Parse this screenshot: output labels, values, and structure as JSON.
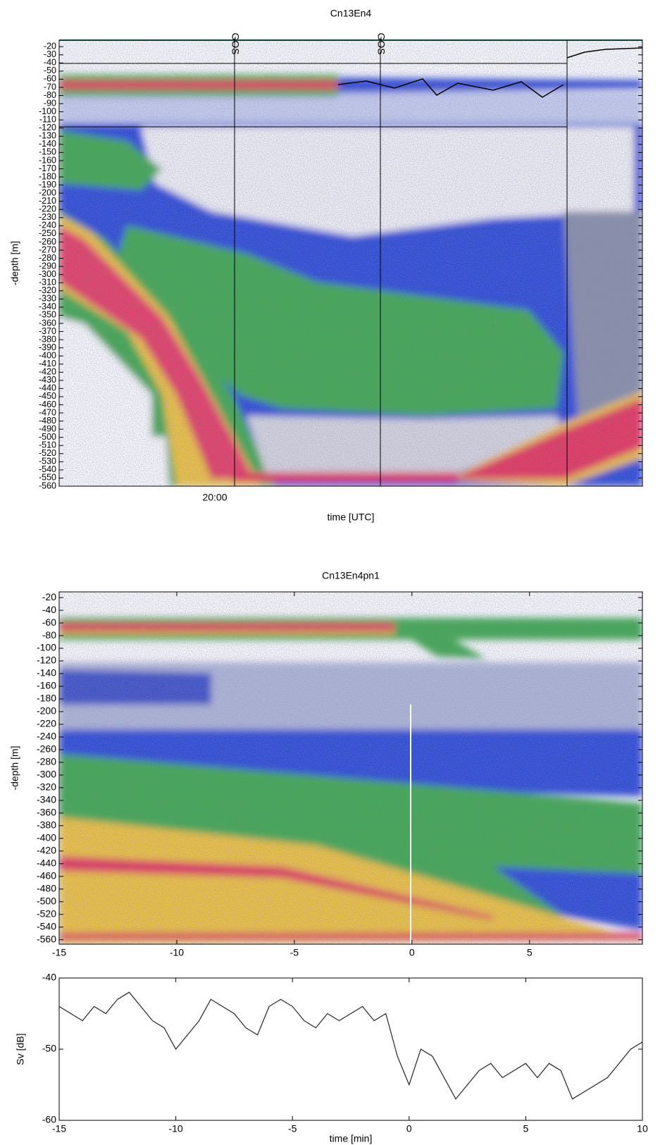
{
  "chart_data": [
    {
      "type": "echogram",
      "title": "Cn13En4",
      "xlabel": "time [UTC]",
      "ylabel": "-depth [m]",
      "xticks": [
        "20:00"
      ],
      "annotations": [
        "GOS",
        "GOS"
      ],
      "ylim": [
        -560,
        -12
      ],
      "yticks": [
        -20,
        -30,
        -40,
        -50,
        -60,
        -70,
        -80,
        -90,
        -100,
        -110,
        -120,
        -130,
        -140,
        -150,
        -160,
        -170,
        -180,
        -190,
        -200,
        -210,
        -220,
        -230,
        -240,
        -250,
        -260,
        -270,
        -280,
        -290,
        -300,
        -310,
        -320,
        -330,
        -340,
        -350,
        -360,
        -370,
        -380,
        -390,
        -400,
        -410,
        -420,
        -430,
        -440,
        -450,
        -460,
        -470,
        -480,
        -490,
        -500,
        -510,
        -520,
        -530,
        -540,
        -550,
        -560
      ]
    },
    {
      "type": "echogram",
      "title": "Cn13En4pn1",
      "ylabel": "-depth [m]",
      "xlim": [
        -15,
        9.8
      ],
      "xticks": [
        -15,
        -10,
        -5,
        0,
        5
      ],
      "ylim": [
        -567,
        -11
      ],
      "yticks": [
        -20,
        -40,
        -60,
        -80,
        -100,
        -120,
        -140,
        -160,
        -180,
        -200,
        -220,
        -240,
        -260,
        -280,
        -300,
        -320,
        -340,
        -360,
        -380,
        -400,
        -420,
        -440,
        -460,
        -480,
        -500,
        -520,
        -540,
        -560
      ]
    },
    {
      "type": "line",
      "xlabel": "time [min]",
      "ylabel": "Sv [dB]",
      "xlim": [
        -15,
        10
      ],
      "xticks": [
        -15,
        -10,
        -5,
        0,
        5,
        10
      ],
      "ylim": [
        -60,
        -40
      ],
      "yticks": [
        -60,
        -50,
        -40
      ],
      "color": "#222222",
      "x": [
        -15,
        -14.5,
        -14,
        -13.5,
        -13,
        -12.5,
        -12,
        -11.5,
        -11,
        -10.5,
        -10,
        -9.5,
        -9,
        -8.5,
        -8,
        -7.5,
        -7,
        -6.5,
        -6,
        -5.5,
        -5,
        -4.5,
        -4,
        -3.5,
        -3,
        -2.5,
        -2,
        -1.5,
        -1,
        -0.5,
        0,
        0.5,
        1,
        1.5,
        2,
        2.5,
        3,
        3.5,
        4,
        4.5,
        5,
        5.5,
        6,
        6.5,
        7,
        7.5,
        8,
        8.5,
        9,
        9.5,
        10
      ],
      "values": [
        -44,
        -45,
        -46,
        -44,
        -45,
        -43,
        -42,
        -44,
        -46,
        -47,
        -50,
        -48,
        -46,
        -43,
        -44,
        -45,
        -47,
        -48,
        -44,
        -43,
        -44,
        -46,
        -47,
        -45,
        -46,
        -45,
        -44,
        -46,
        -45,
        -51,
        -55,
        -50,
        -51,
        -54,
        -57,
        -55,
        -53,
        -52,
        -54,
        -53,
        -52,
        -54,
        -52,
        -53,
        -57,
        -56,
        -55,
        -54,
        -52,
        -50,
        -49
      ]
    }
  ]
}
